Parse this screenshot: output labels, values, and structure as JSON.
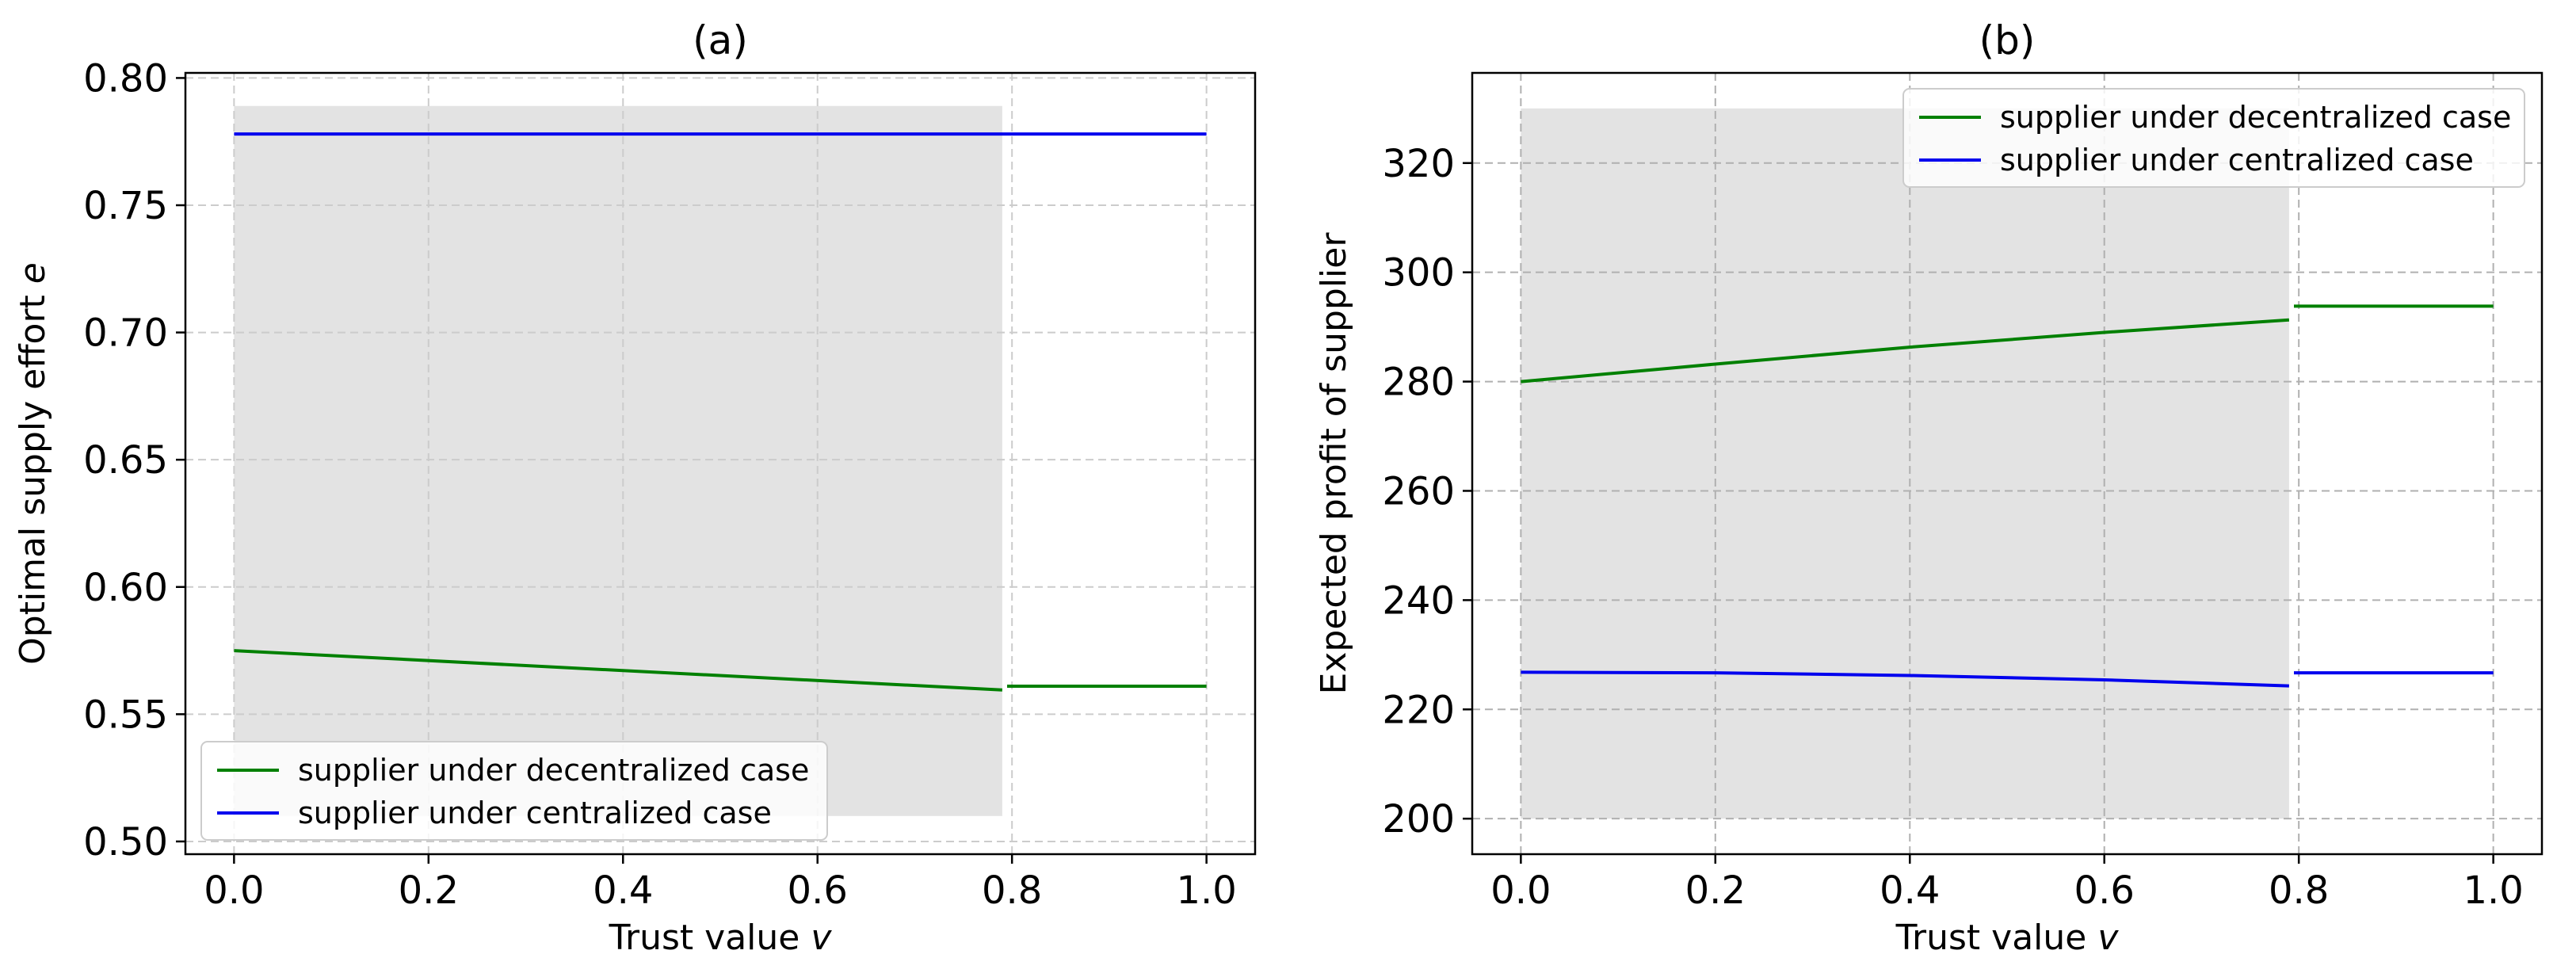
{
  "chart_data": [
    {
      "type": "line",
      "title": "(a)",
      "xlabel": "Trust value ",
      "xlabel_var": "v",
      "ylabel": "Optimal supply effort ",
      "ylabel_var": "e",
      "xlim": [
        -0.05,
        1.05
      ],
      "ylim": [
        0.495,
        0.802
      ],
      "xticks": [
        0.0,
        0.2,
        0.4,
        0.6,
        0.8,
        1.0
      ],
      "xtick_labels": [
        "0.0",
        "0.2",
        "0.4",
        "0.6",
        "0.8",
        "1.0"
      ],
      "yticks": [
        0.5,
        0.55,
        0.6,
        0.65,
        0.7,
        0.75,
        0.8
      ],
      "ytick_labels": [
        "0.50",
        "0.55",
        "0.60",
        "0.65",
        "0.70",
        "0.75",
        "0.80"
      ],
      "grid": true,
      "legend_position": "bottom-left",
      "shaded_region": {
        "x": [
          0.0,
          0.79
        ],
        "y": [
          0.51,
          0.789
        ],
        "color": "#e3e3e3"
      },
      "series": [
        {
          "name": "supplier under decentralized case",
          "color": "#008000",
          "segments": [
            {
              "x": [
                0.0,
                0.79
              ],
              "y": [
                0.575,
                0.5595
              ]
            },
            {
              "x": [
                0.795,
                1.0
              ],
              "y": [
                0.561,
                0.561
              ]
            }
          ]
        },
        {
          "name": "supplier under centralized case",
          "color": "#0000ee",
          "segments": [
            {
              "x": [
                0.0,
                1.0
              ],
              "y": [
                0.778,
                0.778
              ]
            }
          ]
        }
      ]
    },
    {
      "type": "line",
      "title": "(b)",
      "xlabel": "Trust value ",
      "xlabel_var": "v",
      "ylabel": "Expected profit of supplier",
      "ylabel_var": "",
      "xlim": [
        -0.05,
        1.05
      ],
      "ylim": [
        193.5,
        336.5
      ],
      "xticks": [
        0.0,
        0.2,
        0.4,
        0.6,
        0.8,
        1.0
      ],
      "xtick_labels": [
        "0.0",
        "0.2",
        "0.4",
        "0.6",
        "0.8",
        "1.0"
      ],
      "yticks": [
        200,
        220,
        240,
        260,
        280,
        300,
        320
      ],
      "ytick_labels": [
        "200",
        "220",
        "240",
        "260",
        "280",
        "300",
        "320"
      ],
      "grid": true,
      "legend_position": "top-right",
      "shaded_region": {
        "x": [
          0.0,
          0.79
        ],
        "y": [
          200,
          330
        ],
        "color": "#e3e3e3"
      },
      "series": [
        {
          "name": "supplier under decentralized case",
          "color": "#008000",
          "segments": [
            {
              "x": [
                0.0,
                0.2,
                0.4,
                0.6,
                0.79
              ],
              "y": [
                280.0,
                283.2,
                286.3,
                289.0,
                291.3
              ]
            },
            {
              "x": [
                0.795,
                1.0
              ],
              "y": [
                293.8,
                293.8
              ]
            }
          ]
        },
        {
          "name": "supplier under centralized case",
          "color": "#0000ee",
          "segments": [
            {
              "x": [
                0.0,
                0.2,
                0.4,
                0.6,
                0.79
              ],
              "y": [
                226.8,
                226.7,
                226.2,
                225.4,
                224.3
              ]
            },
            {
              "x": [
                0.795,
                1.0
              ],
              "y": [
                226.7,
                226.7
              ]
            }
          ]
        }
      ]
    }
  ]
}
